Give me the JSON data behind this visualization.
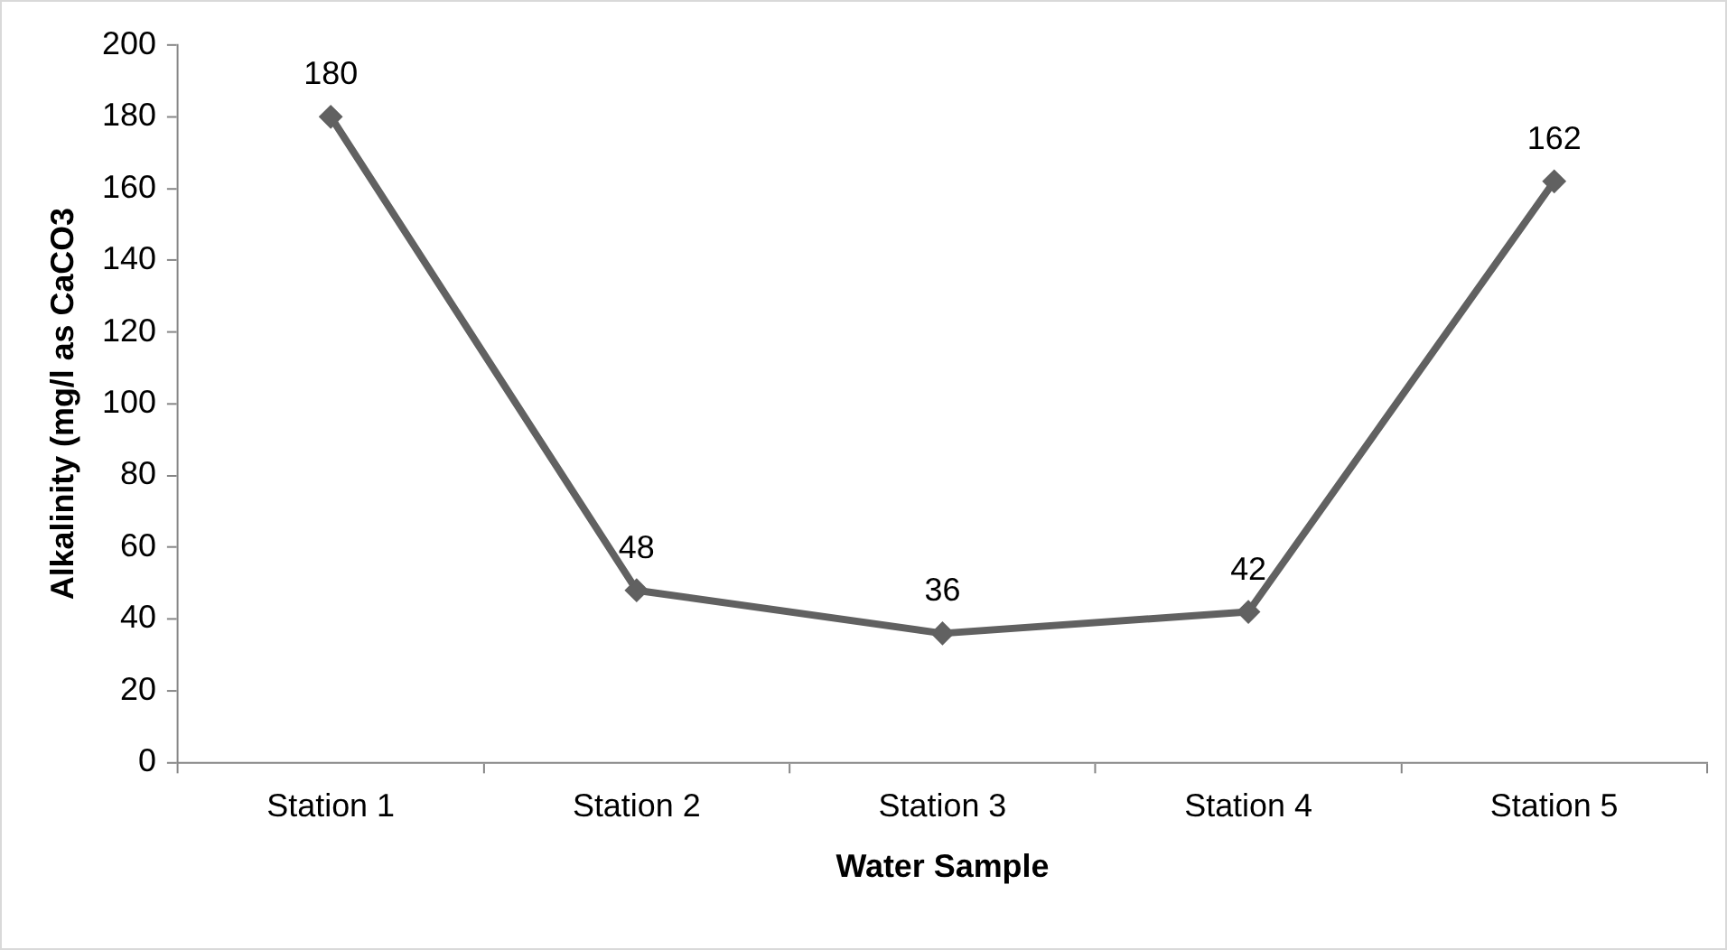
{
  "chart_data": {
    "type": "line",
    "xlabel": "Water Sample",
    "ylabel": "Alkalinity (mg/l as CaCO3",
    "categories": [
      "Station 1",
      "Station 2",
      "Station 3",
      "Station 4",
      "Station 5"
    ],
    "series": [
      {
        "color": "#616161",
        "values": [
          180,
          48,
          36,
          42,
          162
        ]
      }
    ],
    "ylim": [
      0,
      200
    ],
    "yticks": [
      0,
      20,
      40,
      60,
      80,
      100,
      120,
      140,
      160,
      180,
      200
    ],
    "grid": false,
    "legend": false,
    "marker": "diamond",
    "line_style": "solid",
    "data_labels": true
  }
}
